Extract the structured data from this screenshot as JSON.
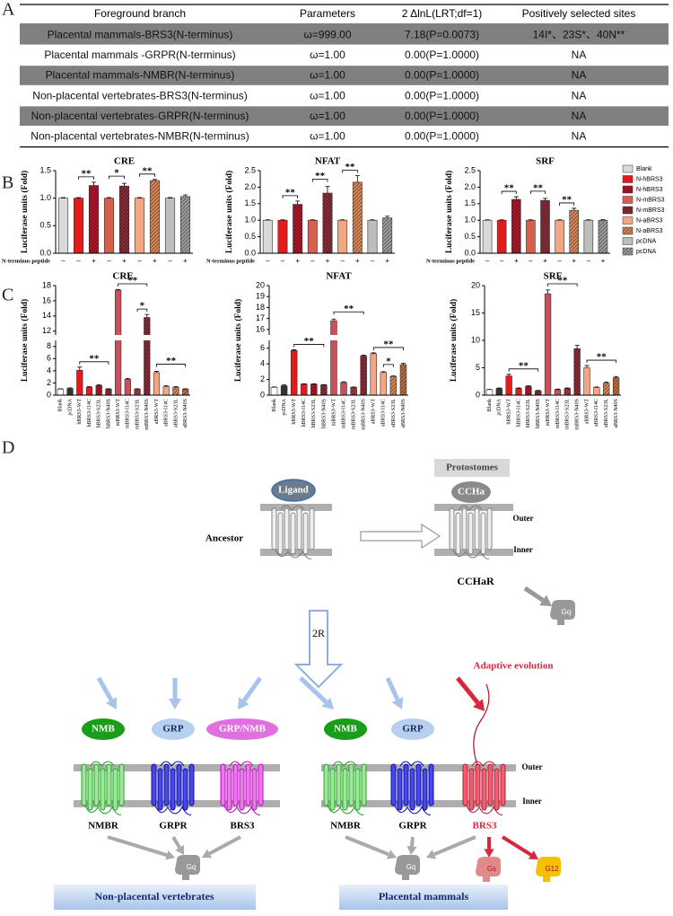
{
  "panel_labels": [
    "A",
    "B",
    "C",
    "D"
  ],
  "table": {
    "header": [
      "Foreground branch",
      "Parameters",
      "2 ΔlnL(LRT;df=1)",
      "Positively selected sites"
    ],
    "rows": [
      [
        "Placental mammals-BRS3(N-terminus)",
        "ω=999.00",
        "7.18(P=0.0073)",
        "14I*、23S*、40N**"
      ],
      [
        "Placental mammals -GRPR(N-terminus)",
        "ω=1.00",
        "0.00(P=1.0000)",
        "NA"
      ],
      [
        "Placental mammals-NMBR(N-terminus)",
        "ω=1.00",
        "0.00(P=1.0000)",
        "NA"
      ],
      [
        "Non-placental vertebrates-BRS3(N-terminus)",
        "ω=1.00",
        "0.00(P=1.0000)",
        "NA"
      ],
      [
        "Non-placental vertebrates-GRPR(N-terminus)",
        "ω=1.00",
        "0.00(P=1.0000)",
        "NA"
      ],
      [
        "Non-placental vertebrates-NMBR(N-terminus)",
        "ω=1.00",
        "0.00(P=1.0000)",
        "NA"
      ]
    ]
  },
  "chart_data": [
    {
      "type": "bar",
      "title": "CRE",
      "y_label": "Luciferase units (Fold)",
      "x_row_label": "N-terminus peptide",
      "categories": [
        "–",
        "–",
        "+",
        "–",
        "+",
        "–",
        "+",
        "–",
        "+"
      ],
      "values": [
        1.0,
        1.0,
        1.23,
        1.0,
        1.22,
        1.0,
        1.32,
        1.0,
        1.03
      ],
      "errors": [
        0.01,
        0.01,
        0.06,
        0.01,
        0.05,
        0.01,
        0.02,
        0.01,
        0.03
      ],
      "colors": [
        "#d9d9d9",
        "#e41a1c",
        "#b2182b",
        "#d6604d",
        "#8c2d3a",
        "#f4a582",
        "#d9895a",
        "#bdbdbd",
        "#9e9e9e"
      ],
      "patterned": [
        false,
        false,
        true,
        false,
        true,
        false,
        true,
        false,
        true
      ],
      "ylim": [
        0,
        1.5
      ],
      "yticks": [
        {
          "value": 0,
          "label": "0.0"
        },
        {
          "value": 0.5,
          "label": "0.5"
        },
        {
          "value": 1,
          "label": "1.0"
        },
        {
          "value": 1.5,
          "label": "1.5"
        }
      ],
      "annotations": [
        {
          "label": "**",
          "bars": [
            1,
            2
          ]
        },
        {
          "label": "*",
          "bars": [
            3,
            4
          ]
        },
        {
          "label": "**",
          "bars": [
            5,
            6
          ]
        }
      ]
    },
    {
      "type": "bar",
      "title": "NFAT",
      "y_label": "Luciferase units (Fold)",
      "x_row_label": "N-terminus peptide",
      "categories": [
        "–",
        "–",
        "+",
        "–",
        "+",
        "–",
        "+",
        "–",
        "+"
      ],
      "values": [
        1.0,
        1.0,
        1.48,
        1.0,
        1.82,
        1.0,
        2.15,
        1.0,
        1.07
      ],
      "errors": [
        0.01,
        0.01,
        0.1,
        0.01,
        0.2,
        0.01,
        0.2,
        0.01,
        0.05
      ],
      "colors": [
        "#d9d9d9",
        "#e41a1c",
        "#b2182b",
        "#d6604d",
        "#8c2d3a",
        "#f4a582",
        "#d9895a",
        "#bdbdbd",
        "#9e9e9e"
      ],
      "patterned": [
        false,
        false,
        true,
        false,
        true,
        false,
        true,
        false,
        true
      ],
      "ylim": [
        0,
        2.5
      ],
      "yticks": [
        {
          "value": 0,
          "label": "0.0"
        },
        {
          "value": 0.5,
          "label": "0.5"
        },
        {
          "value": 1,
          "label": "1.0"
        },
        {
          "value": 1.5,
          "label": "1.5"
        },
        {
          "value": 2,
          "label": "2.0"
        },
        {
          "value": 2.5,
          "label": "2.5"
        }
      ],
      "annotations": [
        {
          "label": "**",
          "bars": [
            1,
            2
          ]
        },
        {
          "label": "**",
          "bars": [
            3,
            4
          ]
        },
        {
          "label": "**",
          "bars": [
            5,
            6
          ]
        }
      ]
    },
    {
      "type": "bar",
      "title": "SRF",
      "y_label": "Luciferase units (Fold)",
      "x_row_label": "N-terminus peptide",
      "categories": [
        "–",
        "–",
        "+",
        "–",
        "+",
        "–",
        "+",
        "–",
        "+"
      ],
      "values": [
        1.0,
        1.0,
        1.63,
        1.0,
        1.6,
        1.0,
        1.3,
        1.0,
        1.0
      ],
      "errors": [
        0.01,
        0.01,
        0.08,
        0.01,
        0.06,
        0.01,
        0.06,
        0.01,
        0.02
      ],
      "colors": [
        "#d9d9d9",
        "#e41a1c",
        "#b2182b",
        "#d6604d",
        "#8c2d3a",
        "#f4a582",
        "#d9895a",
        "#bdbdbd",
        "#9e9e9e"
      ],
      "patterned": [
        false,
        false,
        true,
        false,
        true,
        false,
        true,
        false,
        true
      ],
      "ylim": [
        0,
        2.5
      ],
      "yticks": [
        {
          "value": 0,
          "label": "0.0"
        },
        {
          "value": 0.5,
          "label": "0.5"
        },
        {
          "value": 1,
          "label": "1.0"
        },
        {
          "value": 1.5,
          "label": "1.5"
        },
        {
          "value": 2,
          "label": "2.0"
        },
        {
          "value": 2.5,
          "label": "2.5"
        }
      ],
      "annotations": [
        {
          "label": "**",
          "bars": [
            1,
            2
          ]
        },
        {
          "label": "**",
          "bars": [
            3,
            4
          ]
        },
        {
          "label": "**",
          "bars": [
            5,
            6
          ]
        }
      ],
      "legend": [
        "Blank",
        "N-hBRS3",
        "N-hBRS3",
        "N-mBRS3",
        "N-mBRS3",
        "N-aBRS3",
        "N-aBRS3",
        "pcDNA",
        "pcDNA"
      ]
    },
    {
      "type": "bar",
      "title": "CRE",
      "y_label": "Luciferase units (Fold)",
      "categories": [
        "Blank",
        "pcDNA",
        "hBRS3-WT",
        "hBRS3-I14C",
        "hBRS3-S23L",
        "hBRS3-N40S",
        "mBRS3-WT",
        "mBRS3-I14C",
        "mBRS3-S23L",
        "mBRS3-N40S",
        "aBRS3-WT",
        "aBRS3-I14C",
        "aBRS3-S23L",
        "aBRS3-N40S"
      ],
      "values": [
        1.0,
        1.1,
        4.1,
        1.3,
        1.6,
        1.0,
        17.4,
        2.6,
        1.0,
        13.8,
        3.7,
        1.4,
        1.3,
        1.0
      ],
      "errors": [
        0.05,
        0.1,
        0.5,
        0.1,
        0.1,
        0.05,
        0.1,
        0.15,
        0.05,
        0.4,
        0.2,
        0.15,
        0.1,
        0.05
      ],
      "colors": [
        "#ffffff",
        "#333333",
        "#e41a1c",
        "#e41a1c",
        "#b2182b",
        "#8c2d3a",
        "#c8505a",
        "#c8505a",
        "#a33a48",
        "#8c2d3a",
        "#f4a582",
        "#f4a582",
        "#d9895a",
        "#c07040"
      ],
      "patterned": [
        false,
        false,
        false,
        false,
        true,
        true,
        false,
        false,
        true,
        true,
        false,
        false,
        true,
        true
      ],
      "ylim": [
        0,
        18
      ],
      "axis_break": [
        9,
        11.5
      ],
      "yticks": [
        0,
        2,
        4,
        6,
        8,
        12,
        14,
        16,
        18
      ],
      "annotations": [
        {
          "label": "**",
          "bars": [
            2,
            5
          ]
        },
        {
          "label": "**",
          "bars": [
            6,
            9
          ]
        },
        {
          "label": "*",
          "bars": [
            8,
            9
          ]
        },
        {
          "label": "**",
          "bars": [
            10,
            13
          ]
        }
      ]
    },
    {
      "type": "bar",
      "title": "NFAT",
      "y_label": "Luciferase units (Fold)",
      "categories": [
        "Blank",
        "pcDNA",
        "hBRS3-WT",
        "hBRS3-I14C",
        "hBRS3-S23L",
        "hBRS3-N40S",
        "mBRS3-WT",
        "mBRS3-I14C",
        "mBRS3-S23L",
        "mBRS3-N40S",
        "aBRS3-WT",
        "aBRS3-I14C",
        "aBRS3-S23L",
        "aBRS3-N40S"
      ],
      "values": [
        1.0,
        1.2,
        5.7,
        1.4,
        1.4,
        1.3,
        16.8,
        1.6,
        1.0,
        5.0,
        5.3,
        2.9,
        2.4,
        3.9
      ],
      "errors": [
        0.05,
        0.1,
        0.1,
        0.05,
        0.05,
        0.05,
        0.15,
        0.1,
        0.05,
        0.1,
        0.1,
        0.1,
        0.05,
        0.15
      ],
      "colors": [
        "#ffffff",
        "#333333",
        "#e41a1c",
        "#e41a1c",
        "#b2182b",
        "#8c2d3a",
        "#c8505a",
        "#c8505a",
        "#a33a48",
        "#8c2d3a",
        "#f4a582",
        "#f4a582",
        "#d9895a",
        "#c07040"
      ],
      "patterned": [
        false,
        false,
        false,
        false,
        true,
        true,
        false,
        false,
        true,
        true,
        false,
        false,
        true,
        true
      ],
      "ylim": [
        0,
        20
      ],
      "axis_break": [
        7,
        15.5
      ],
      "yticks": [
        0,
        2,
        4,
        6,
        16,
        17,
        18,
        19,
        20
      ],
      "annotations": [
        {
          "label": "**",
          "bars": [
            2,
            5
          ]
        },
        {
          "label": "**",
          "bars": [
            6,
            9
          ]
        },
        {
          "label": "**",
          "bars": [
            10,
            13
          ]
        },
        {
          "label": "*",
          "bars": [
            11,
            12
          ]
        }
      ]
    },
    {
      "type": "bar",
      "title": "SRF",
      "y_label": "Luciferase units (Fold)",
      "categories": [
        "Blank",
        "pcDNA",
        "hBRS3-WT",
        "hBRS3-I14C",
        "hBRS3-S23L",
        "hBRS3-N40S",
        "mBRS3-WT",
        "mBRS3-I14C",
        "mBRS3-S23L",
        "mBRS3-N40S",
        "aBRS3-WT",
        "aBRS3-I14C",
        "aBRS3-S23L",
        "aBRS3-N40S"
      ],
      "values": [
        1.0,
        1.2,
        3.5,
        1.2,
        1.6,
        0.8,
        18.5,
        1.0,
        1.2,
        8.5,
        5.0,
        1.4,
        2.2,
        3.2
      ],
      "errors": [
        0.05,
        0.1,
        0.3,
        0.1,
        0.1,
        0.05,
        0.7,
        0.1,
        0.1,
        0.6,
        0.4,
        0.1,
        0.2,
        0.2
      ],
      "colors": [
        "#ffffff",
        "#333333",
        "#e41a1c",
        "#e41a1c",
        "#b2182b",
        "#8c2d3a",
        "#c8505a",
        "#c8505a",
        "#a33a48",
        "#8c2d3a",
        "#f4a582",
        "#f4a582",
        "#d9895a",
        "#c07040"
      ],
      "patterned": [
        false,
        false,
        false,
        false,
        true,
        true,
        false,
        false,
        true,
        true,
        false,
        false,
        true,
        true
      ],
      "ylim": [
        0,
        20
      ],
      "yticks": [
        0,
        5,
        10,
        15,
        20
      ],
      "annotations": [
        {
          "label": "**",
          "bars": [
            2,
            5
          ]
        },
        {
          "label": "**",
          "bars": [
            6,
            9
          ]
        },
        {
          "label": "**",
          "bars": [
            10,
            13
          ]
        }
      ]
    }
  ],
  "diagram": {
    "ligand": "Ligand",
    "ancestor": "Ancestor",
    "protostomes": "Protostomes",
    "ccha": "CCHa",
    "ccha_r": "CCHaR",
    "outer_top": "Outer",
    "inner_top": "Inner",
    "protostome_g": "Gq",
    "duplication": "2R",
    "adaptive": "Adaptive evolution",
    "outer_bottom": "Outer",
    "inner_bottom": "Inner",
    "non_placental": {
      "title": "Non-placental vertebrates",
      "ligands": [
        "NMB",
        "GRP",
        "GRP/NMB"
      ],
      "receptors": [
        "NMBR",
        "GRPR",
        "BRS3"
      ],
      "g_protein": "Gq"
    },
    "placental": {
      "title": "Placental mammals",
      "ligands": [
        "NMB",
        "GRP"
      ],
      "receptors": [
        "NMBR",
        "GRPR",
        "BRS3"
      ],
      "g_proteins": [
        "Gq",
        "Gs",
        "G12"
      ]
    }
  }
}
